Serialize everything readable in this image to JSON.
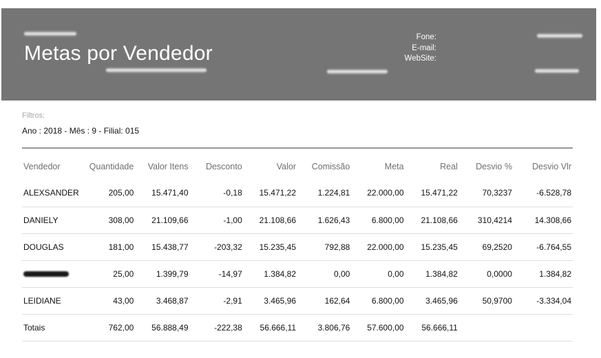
{
  "header": {
    "title": "Metas por Vendedor",
    "contact_labels": {
      "phone": "Fone:",
      "email": "E-mail:",
      "website": "WebSite:"
    }
  },
  "filters": {
    "label": "Filtros:",
    "value": "Ano : 2018 - Mês : 9 - Filial: 015"
  },
  "table": {
    "columns": [
      "Vendedor",
      "Quantidade",
      "Valor Itens",
      "Desconto",
      "Valor",
      "Comissão",
      "Meta",
      "Real",
      "Desvio %",
      "Desvio Vlr"
    ],
    "rows": [
      [
        "ALEXSANDER",
        "205,00",
        "15.471,40",
        "-0,18",
        "15.471,22",
        "1.224,81",
        "22.000,00",
        "15.471,22",
        "70,3237",
        "-6.528,78"
      ],
      [
        "DANIELY",
        "308,00",
        "21.109,66",
        "-1,00",
        "21.108,66",
        "1.626,43",
        "6.800,00",
        "21.108,66",
        "310,4214",
        "14.308,66"
      ],
      [
        "DOUGLAS",
        "181,00",
        "15.438,77",
        "-203,32",
        "15.235,45",
        "792,88",
        "22.000,00",
        "15.235,45",
        "69,2520",
        "-6.764,55"
      ],
      [
        "",
        "25,00",
        "1.399,79",
        "-14,97",
        "1.384,82",
        "0,00",
        "0,00",
        "1.384,82",
        "0,0000",
        "1.384,82"
      ],
      [
        "LEIDIANE",
        "43,00",
        "3.468,87",
        "-2,91",
        "3.465,96",
        "162,64",
        "6.800,00",
        "3.465,96",
        "50,9700",
        "-3.334,04"
      ]
    ],
    "totals": [
      "Totais",
      "762,00",
      "56.888,49",
      "-222,38",
      "56.666,11",
      "3.806,76",
      "57.600,00",
      "56.666,11",
      "",
      ""
    ]
  }
}
